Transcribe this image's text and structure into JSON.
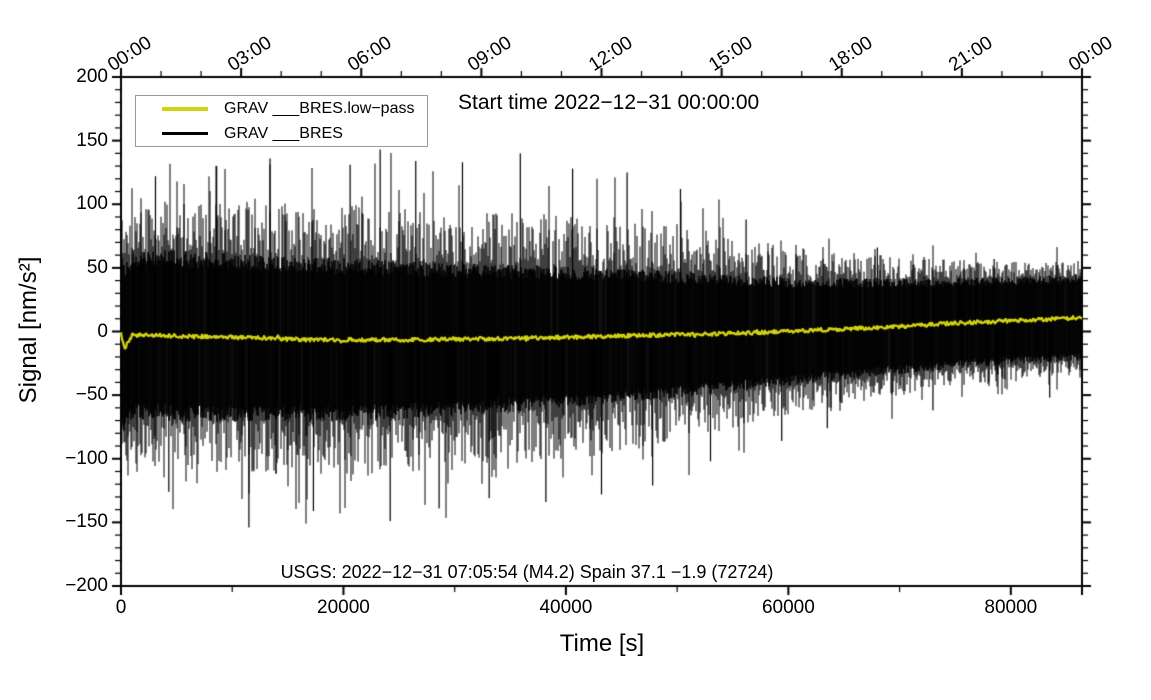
{
  "figure": {
    "title": "Start time 2022−12−31 00:00:00",
    "annotation": "USGS: 2022−12−31 07:05:54 (M4.2) Spain 37.1 −1.9 (72724)",
    "xlabel": "Time [s]",
    "ylabel": "Signal [nm/s²]",
    "background_color": "#ffffff",
    "frame_color": "#000000"
  },
  "legend": {
    "position": "top-left",
    "items": [
      {
        "label": "GRAV ___BRES.low−pass",
        "color": "#d2d214"
      },
      {
        "label": "GRAV ___BRES",
        "color": "#000000"
      }
    ]
  },
  "chart_data": {
    "type": "line",
    "title": "Start time 2022−12−31 00:00:00",
    "xlabel": "Time [s]",
    "ylabel": "Signal [nm/s²]",
    "xlim": [
      0,
      86400
    ],
    "ylim": [
      -200,
      200
    ],
    "grid": false,
    "legend_position": "top-left",
    "x_ticks_bottom": {
      "major": [
        0,
        20000,
        40000,
        60000,
        80000
      ],
      "labels": [
        "0",
        "20000",
        "40000",
        "60000",
        "80000"
      ],
      "minor_interval": 10000
    },
    "x_ticks_top": {
      "major_interval_s": 10800,
      "minor_interval_s": 3600,
      "labels": [
        "00:00",
        "03:00",
        "06:00",
        "09:00",
        "12:00",
        "15:00",
        "18:00",
        "21:00",
        "00:00"
      ],
      "rotation_deg": -33
    },
    "y_ticks": {
      "major": [
        200,
        150,
        100,
        50,
        0,
        -50,
        -100,
        -150,
        -200
      ],
      "labels": [
        "200",
        "150",
        "100",
        "50",
        "0",
        "−50",
        "−100",
        "−150",
        "−200"
      ],
      "minor_interval": 10
    },
    "annotation": "USGS: 2022−12−31 07:05:54 (M4.2) Spain 37.1 −1.9 (72724)",
    "series": [
      {
        "name": "GRAV ___BRES",
        "color": "#000000",
        "style": "broadband-noise",
        "description": "dense noise band centered on the low-pass curve; core half-amplitude and maximum spike amplitude sampled vs time (s, nm/s2)",
        "t": [
          0,
          5000,
          10000,
          15000,
          20000,
          25000,
          30000,
          35000,
          40000,
          45000,
          50000,
          55000,
          60000,
          65000,
          70000,
          75000,
          80000,
          86400
        ],
        "core_amplitude": [
          65,
          66,
          65,
          64,
          63,
          61,
          59,
          57,
          55,
          52,
          49,
          45,
          42,
          39,
          37,
          35,
          34,
          33
        ],
        "spike_amplitude": [
          135,
          142,
          150,
          148,
          150,
          148,
          140,
          142,
          136,
          130,
          120,
          104,
          92,
          82,
          72,
          64,
          58,
          56
        ],
        "notable_spikes": [
          {
            "t": 3100,
            "y": 122
          },
          {
            "t": 4300,
            "y": -126
          },
          {
            "t": 8600,
            "y": 130
          },
          {
            "t": 11500,
            "y": -154
          },
          {
            "t": 13400,
            "y": 136
          },
          {
            "t": 17300,
            "y": -141
          },
          {
            "t": 20600,
            "y": 131
          },
          {
            "t": 23300,
            "y": 143
          },
          {
            "t": 24200,
            "y": -149
          },
          {
            "t": 26500,
            "y": 134
          },
          {
            "t": 28600,
            "y": -139
          },
          {
            "t": 30700,
            "y": 133
          },
          {
            "t": 33100,
            "y": -131
          },
          {
            "t": 35900,
            "y": 140
          },
          {
            "t": 38200,
            "y": -134
          },
          {
            "t": 40600,
            "y": 128
          },
          {
            "t": 43200,
            "y": -128
          },
          {
            "t": 45500,
            "y": 125
          },
          {
            "t": 47800,
            "y": -121
          },
          {
            "t": 50300,
            "y": 112
          },
          {
            "t": 53000,
            "y": -102
          },
          {
            "t": 56200,
            "y": 88
          },
          {
            "t": 59400,
            "y": -86
          },
          {
            "t": 63500,
            "y": -76
          },
          {
            "t": 68000,
            "y": 66
          },
          {
            "t": 73000,
            "y": -62
          },
          {
            "t": 78500,
            "y": 57
          },
          {
            "t": 83500,
            "y": -52
          }
        ]
      },
      {
        "name": "GRAV ___BRES.low−pass",
        "color": "#d2d214",
        "style": "line",
        "t": [
          0,
          300,
          1000,
          2500,
          5000,
          7500,
          10000,
          12500,
          15000,
          17500,
          20000,
          25000,
          30000,
          35000,
          40000,
          45000,
          50000,
          55000,
          60000,
          65000,
          70000,
          75000,
          80000,
          83000,
          86400
        ],
        "y": [
          -1,
          -14,
          -3,
          -3,
          -3.5,
          -4,
          -4.5,
          -5,
          -6,
          -6.5,
          -6.5,
          -6.5,
          -6,
          -5.5,
          -4.5,
          -3.5,
          -2.5,
          -1.5,
          0,
          2,
          4,
          6.5,
          8.5,
          9.5,
          11
        ]
      }
    ]
  }
}
